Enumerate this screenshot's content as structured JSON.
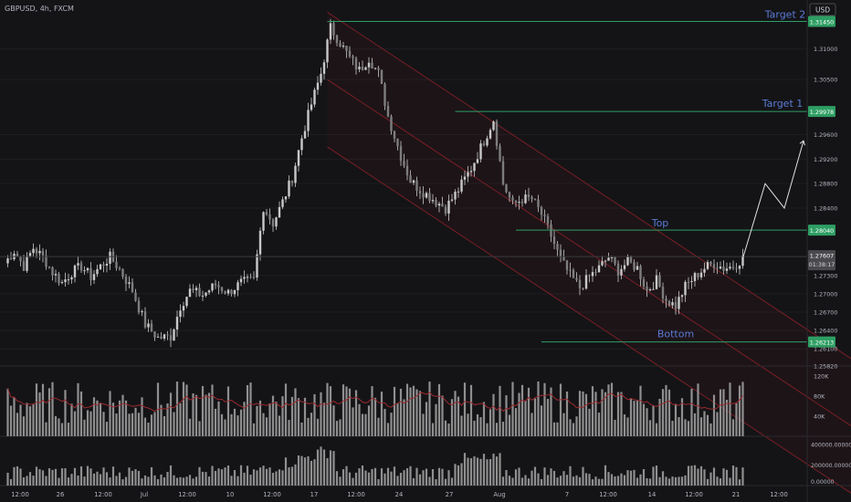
{
  "header": {
    "symbol_label": "GBPUSD, 4h, FXCM",
    "currency_button": "USD"
  },
  "colors": {
    "background": "#141417",
    "candle": "#c8c8c8",
    "level_line": "#2e9e63",
    "level_badge": "#2e9e63",
    "annotation_text": "#5b7bd5",
    "channel_line": "#7a1f24",
    "channel_fill": "rgba(122,31,36,0.10)",
    "volume_bar": "#8f8f8f",
    "volume_ma": "#9c2a2e",
    "price_badge": "#4a4a4e",
    "grid": "#1e1e22",
    "axis_text": "#b2b5be"
  },
  "chart_data": {
    "type": "candlestick",
    "title": "GBPUSD, 4h, FXCM",
    "currency": "USD",
    "ylim": [
      1.2582,
      1.318
    ],
    "y_ticks": [
      {
        "value": 1.31,
        "label": "1.31000"
      },
      {
        "value": 1.305,
        "label": "1.30500"
      },
      {
        "value": 1.296,
        "label": "1.29600"
      },
      {
        "value": 1.292,
        "label": "1.29200"
      },
      {
        "value": 1.288,
        "label": "1.28800"
      },
      {
        "value": 1.284,
        "label": "1.28400"
      },
      {
        "value": 1.273,
        "label": "1.27300"
      },
      {
        "value": 1.27,
        "label": "1.27000"
      },
      {
        "value": 1.267,
        "label": "1.26700"
      },
      {
        "value": 1.264,
        "label": "1.26400"
      },
      {
        "value": 1.261,
        "label": "1.26100"
      },
      {
        "value": 1.2582,
        "label": "1.25820"
      }
    ],
    "x_ticks": [
      "12:00",
      "26",
      "12:00",
      "Jul",
      "12:00",
      "10",
      "12:00",
      "17",
      "12:00",
      "24",
      "27",
      "Aug",
      "7",
      "12:00",
      "14",
      "12:00",
      "21",
      "12:00"
    ],
    "current_price": {
      "value": 1.27607,
      "label": "1.27607",
      "countdown": "01:38:17"
    },
    "levels": [
      {
        "name": "Target 2",
        "value": 1.3145,
        "label": "1.31450"
      },
      {
        "name": "Target 1",
        "value": 1.29978,
        "label": "1.29978"
      },
      {
        "name": "Top",
        "value": 1.2804,
        "label": "1.28040"
      },
      {
        "name": "Bottom",
        "value": 1.26213,
        "label": "1.26213"
      }
    ],
    "price_path": [
      [
        0,
        1.275
      ],
      [
        3,
        1.277
      ],
      [
        6,
        1.2745
      ],
      [
        9,
        1.2775
      ],
      [
        12,
        1.276
      ],
      [
        15,
        1.2735
      ],
      [
        18,
        1.2718
      ],
      [
        21,
        1.2735
      ],
      [
        24,
        1.2745
      ],
      [
        27,
        1.2728
      ],
      [
        30,
        1.2745
      ],
      [
        33,
        1.276
      ],
      [
        36,
        1.274
      ],
      [
        40,
        1.2705
      ],
      [
        44,
        1.265
      ],
      [
        48,
        1.2628
      ],
      [
        52,
        1.263
      ],
      [
        55,
        1.268
      ],
      [
        58,
        1.2705
      ],
      [
        62,
        1.2698
      ],
      [
        66,
        1.2715
      ],
      [
        70,
        1.2702
      ],
      [
        74,
        1.2718
      ],
      [
        78,
        1.2722
      ],
      [
        81,
        1.2842
      ],
      [
        84,
        1.2815
      ],
      [
        87,
        1.285
      ],
      [
        90,
        1.289
      ],
      [
        93,
        1.2955
      ],
      [
        96,
        1.301
      ],
      [
        99,
        1.306
      ],
      [
        102,
        1.3135
      ],
      [
        105,
        1.311
      ],
      [
        108,
        1.3085
      ],
      [
        111,
        1.3065
      ],
      [
        114,
        1.3085
      ],
      [
        117,
        1.306
      ],
      [
        120,
        1.299
      ],
      [
        124,
        1.2925
      ],
      [
        127,
        1.2885
      ],
      [
        130,
        1.287
      ],
      [
        134,
        1.2855
      ],
      [
        138,
        1.284
      ],
      [
        142,
        1.287
      ],
      [
        146,
        1.2905
      ],
      [
        150,
        1.295
      ],
      [
        153,
        1.2985
      ],
      [
        156,
        1.288
      ],
      [
        159,
        1.2845
      ],
      [
        162,
        1.2855
      ],
      [
        165,
        1.2855
      ],
      [
        168,
        1.283
      ],
      [
        171,
        1.2795
      ],
      [
        174,
        1.2755
      ],
      [
        177,
        1.273
      ],
      [
        180,
        1.271
      ],
      [
        183,
        1.2728
      ],
      [
        186,
        1.2742
      ],
      [
        189,
        1.276
      ],
      [
        192,
        1.2738
      ],
      [
        195,
        1.2752
      ],
      [
        198,
        1.2742
      ],
      [
        201,
        1.2705
      ],
      [
        204,
        1.2722
      ],
      [
        207,
        1.269
      ],
      [
        210,
        1.268
      ],
      [
        213,
        1.2712
      ],
      [
        216,
        1.2728
      ],
      [
        219,
        1.2742
      ],
      [
        222,
        1.275
      ],
      [
        225,
        1.2742
      ],
      [
        228,
        1.2745
      ],
      [
        231,
        1.2758
      ]
    ],
    "projection": [
      [
        231,
        1.2758
      ],
      [
        238,
        1.288
      ],
      [
        244,
        1.284
      ],
      [
        250,
        1.295
      ]
    ],
    "channel": {
      "upper": [
        [
          101,
          1.316
        ],
        [
          269,
          1.258
        ]
      ],
      "mid": [
        [
          101,
          1.305
        ],
        [
          269,
          1.247
        ]
      ],
      "lower": [
        [
          101,
          1.294
        ],
        [
          269,
          1.236
        ]
      ]
    },
    "volume_ticks": [
      {
        "value": 120000,
        "label": "120K"
      },
      {
        "value": 80000,
        "label": "80K"
      },
      {
        "value": 40000,
        "label": "40K"
      }
    ],
    "indicator_ticks": [
      {
        "value": 400000000,
        "label": "400000.00000"
      },
      {
        "value": 200000000,
        "label": "200000.00000"
      },
      {
        "value": 0,
        "label": "0.00000"
      }
    ]
  }
}
